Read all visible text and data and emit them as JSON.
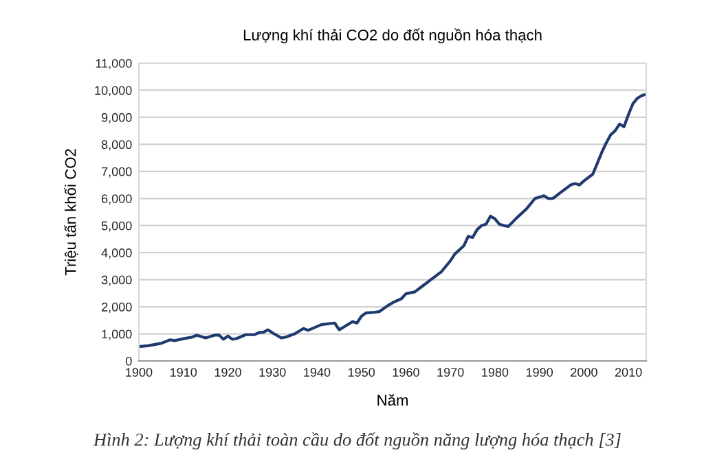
{
  "chart_data": {
    "type": "line",
    "title": "Lượng khí thải CO2 do đốt nguồn hóa thạch",
    "xlabel": "Năm",
    "ylabel": "Triệu tấn khối CO2",
    "annotations": [
      "Hình 2: Lượng khí thải toàn cầu do đốt nguồn năng lượng hóa thạch [3]"
    ],
    "x": [
      1900,
      1902,
      1905,
      1907,
      1908,
      1910,
      1912,
      1913,
      1915,
      1917,
      1918,
      1919,
      1920,
      1921,
      1922,
      1924,
      1926,
      1927,
      1928,
      1929,
      1930,
      1932,
      1933,
      1935,
      1937,
      1938,
      1939,
      1941,
      1943,
      1944,
      1945,
      1946,
      1948,
      1949,
      1950,
      1951,
      1953,
      1954,
      1956,
      1957,
      1959,
      1960,
      1962,
      1964,
      1966,
      1968,
      1970,
      1971,
      1973,
      1974,
      1975,
      1976,
      1977,
      1978,
      1979,
      1980,
      1981,
      1982,
      1983,
      1985,
      1987,
      1989,
      1990,
      1991,
      1992,
      1993,
      1995,
      1997,
      1998,
      1999,
      2000,
      2002,
      2003,
      2004,
      2005,
      2006,
      2007,
      2008,
      2009,
      2010,
      2011,
      2012,
      2013,
      2014
    ],
    "series": [
      {
        "color": "#1f3a6e",
        "values": [
          530,
          560,
          650,
          780,
          750,
          820,
          880,
          950,
          850,
          950,
          960,
          800,
          920,
          800,
          830,
          970,
          970,
          1050,
          1060,
          1150,
          1040,
          850,
          880,
          1000,
          1200,
          1130,
          1200,
          1340,
          1380,
          1400,
          1150,
          1250,
          1450,
          1400,
          1650,
          1770,
          1800,
          1820,
          2050,
          2150,
          2300,
          2480,
          2550,
          2800,
          3050,
          3300,
          3700,
          3950,
          4250,
          4600,
          4560,
          4850,
          5000,
          5050,
          5350,
          5250,
          5050,
          5000,
          4970,
          5300,
          5600,
          6000,
          6050,
          6100,
          6000,
          6000,
          6250,
          6500,
          6550,
          6500,
          6650,
          6900,
          7300,
          7700,
          8050,
          8350,
          8500,
          8750,
          8650,
          9100,
          9500,
          9700,
          9800,
          9850
        ]
      }
    ],
    "xlim": [
      1900,
      2014
    ],
    "xticks": [
      1900,
      1910,
      1920,
      1930,
      1940,
      1950,
      1960,
      1970,
      1980,
      1990,
      2000,
      2010
    ],
    "ylim": [
      0,
      11000
    ],
    "yticks": [
      {
        "value": 0,
        "label": "0"
      },
      {
        "value": 1000,
        "label": "1,000"
      },
      {
        "value": 2000,
        "label": "2,000"
      },
      {
        "value": 3000,
        "label": "3,000"
      },
      {
        "value": 4000,
        "label": "4,000"
      },
      {
        "value": 5000,
        "label": "5,000"
      },
      {
        "value": 6000,
        "label": "6,000"
      },
      {
        "value": 7000,
        "label": "7,000"
      },
      {
        "value": 8000,
        "label": "8,000"
      },
      {
        "value": 9000,
        "label": "9,000"
      },
      {
        "value": 10000,
        "label": "10,000"
      },
      {
        "value": 11000,
        "label": "11,000"
      }
    ],
    "grid": "y",
    "marker": "none",
    "line_style": "solid"
  }
}
